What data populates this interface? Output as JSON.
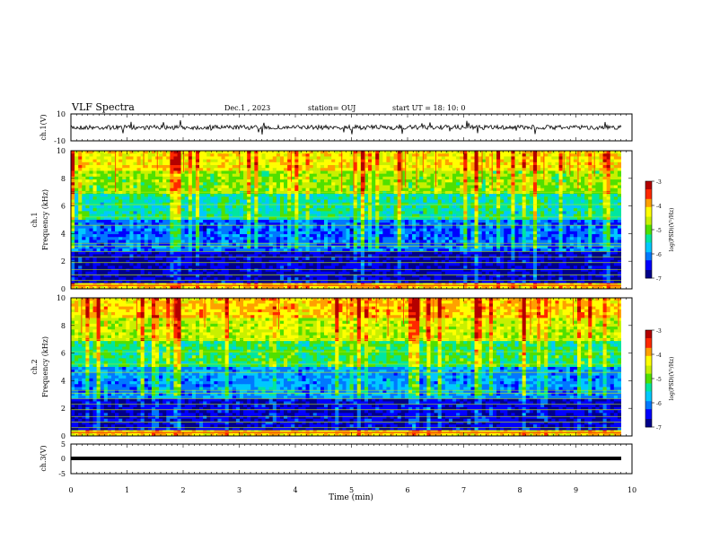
{
  "header": {
    "title": "VLF Spectra",
    "date": "Dec.1 , 2023",
    "station": "station= OUJ",
    "start": "start  UT =   18: 10: 0"
  },
  "colors": {
    "palette": [
      "#00008b",
      "#0000ff",
      "#0078ff",
      "#00c8ff",
      "#00e6a0",
      "#50e000",
      "#c8f000",
      "#ffff00",
      "#ffa000",
      "#ff2800",
      "#b40000"
    ],
    "waveform": "#000000"
  },
  "chart_data": [
    {
      "type": "line",
      "title": "",
      "ylabel": "ch.1(V)",
      "ylim": [
        -10,
        10
      ],
      "yticks": [
        "10",
        "-10"
      ],
      "description_values": {
        "x_range_min": [
          0,
          9.85
        ],
        "level_v": 0
      }
    },
    {
      "type": "heatmap",
      "ylabel_top": "ch.1",
      "ylabel": "Frequency (kHz)",
      "ylim": [
        0,
        10
      ],
      "yticks": [
        "0",
        "2",
        "4",
        "6",
        "8",
        "10"
      ],
      "colorbar": {
        "label": "log(PSD)(V²/Hz)",
        "range": [
          -7,
          -3
        ],
        "ticks": [
          "-3",
          "-4",
          "-5",
          "-6",
          "-7"
        ]
      },
      "bands_khz": [
        {
          "f": [
            0,
            0.5
          ],
          "level": 0.72
        },
        {
          "f": [
            0.5,
            2.7
          ],
          "level": 0.08
        },
        {
          "f": [
            2.7,
            5.0
          ],
          "level": 0.22
        },
        {
          "f": [
            5.0,
            6.8
          ],
          "level": 0.4
        },
        {
          "f": [
            6.8,
            8.5
          ],
          "level": 0.55
        },
        {
          "f": [
            8.5,
            10
          ],
          "level": 0.68
        }
      ]
    },
    {
      "type": "heatmap",
      "ylabel_top": "ch.2",
      "ylabel": "Frequency (kHz)",
      "ylim": [
        0,
        10
      ],
      "yticks": [
        "0",
        "2",
        "4",
        "6",
        "8",
        "10"
      ],
      "colorbar": {
        "label": "log(PSD)(V²/Hz)",
        "range": [
          -7,
          -3
        ],
        "ticks": [
          "-3",
          "-4",
          "-5",
          "-6",
          "-7"
        ]
      },
      "bands_khz": [
        {
          "f": [
            0,
            0.5
          ],
          "level": 0.7
        },
        {
          "f": [
            0.5,
            2.7
          ],
          "level": 0.1
        },
        {
          "f": [
            2.7,
            5.0
          ],
          "level": 0.26
        },
        {
          "f": [
            5.0,
            6.8
          ],
          "level": 0.45
        },
        {
          "f": [
            6.8,
            8.5
          ],
          "level": 0.6
        },
        {
          "f": [
            8.5,
            10
          ],
          "level": 0.72
        }
      ]
    },
    {
      "type": "line",
      "title": "",
      "ylabel": "ch.3(V)",
      "ylim": [
        -5,
        5
      ],
      "yticks": [
        "5",
        "0",
        "-5"
      ],
      "xlabel": "Time  (min)",
      "xlim": [
        0,
        10
      ],
      "xticks": [
        "0",
        "1",
        "2",
        "3",
        "4",
        "5",
        "6",
        "7",
        "8",
        "9",
        "10"
      ],
      "description_values": {
        "level_v": -0.8
      }
    }
  ]
}
